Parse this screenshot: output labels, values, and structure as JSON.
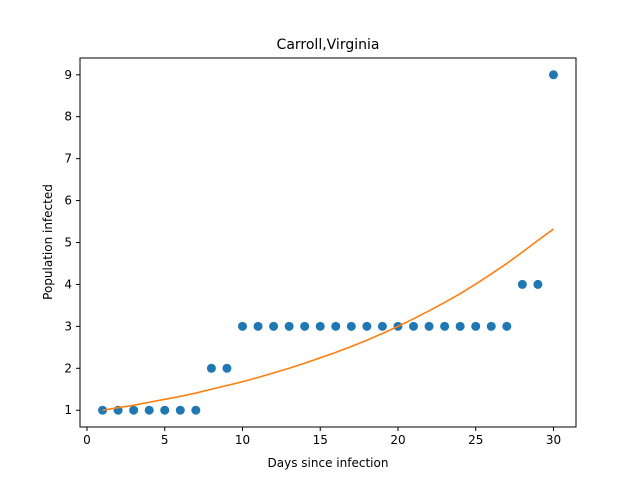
{
  "chart_data": {
    "type": "scatter",
    "title": "Carroll,Virginia",
    "xlabel": "Days since infection",
    "ylabel": "Population infected",
    "xlim": [
      -0.45,
      31.45
    ],
    "ylim": [
      0.6,
      9.4
    ],
    "xticks": [
      0,
      5,
      10,
      15,
      20,
      25,
      30
    ],
    "yticks": [
      1,
      2,
      3,
      4,
      5,
      6,
      7,
      8,
      9
    ],
    "grid": false,
    "legend": "none",
    "series": [
      {
        "kind": "scatter",
        "color": "#1f77b4",
        "x": [
          1,
          2,
          3,
          4,
          5,
          6,
          7,
          8,
          9,
          10,
          11,
          12,
          13,
          14,
          15,
          16,
          17,
          18,
          19,
          20,
          21,
          22,
          23,
          24,
          25,
          26,
          27,
          28,
          29,
          30
        ],
        "y": [
          1,
          1,
          1,
          1,
          1,
          1,
          1,
          2,
          2,
          3,
          3,
          3,
          3,
          3,
          3,
          3,
          3,
          3,
          3,
          3,
          3,
          3,
          3,
          3,
          3,
          3,
          3,
          4,
          4,
          9
        ]
      },
      {
        "kind": "line",
        "color": "#ff7f0e",
        "x": [
          1,
          2,
          3,
          4,
          5,
          6,
          7,
          8,
          9,
          10,
          11,
          12,
          13,
          14,
          15,
          16,
          17,
          18,
          19,
          20,
          21,
          22,
          23,
          24,
          25,
          26,
          27,
          28,
          29,
          30
        ],
        "y": [
          1.0,
          1.06,
          1.12,
          1.19,
          1.26,
          1.33,
          1.41,
          1.5,
          1.59,
          1.68,
          1.78,
          1.89,
          2.0,
          2.12,
          2.25,
          2.38,
          2.52,
          2.67,
          2.83,
          3.0,
          3.18,
          3.37,
          3.57,
          3.78,
          4.01,
          4.25,
          4.5,
          4.77,
          5.05,
          5.32
        ]
      }
    ]
  }
}
